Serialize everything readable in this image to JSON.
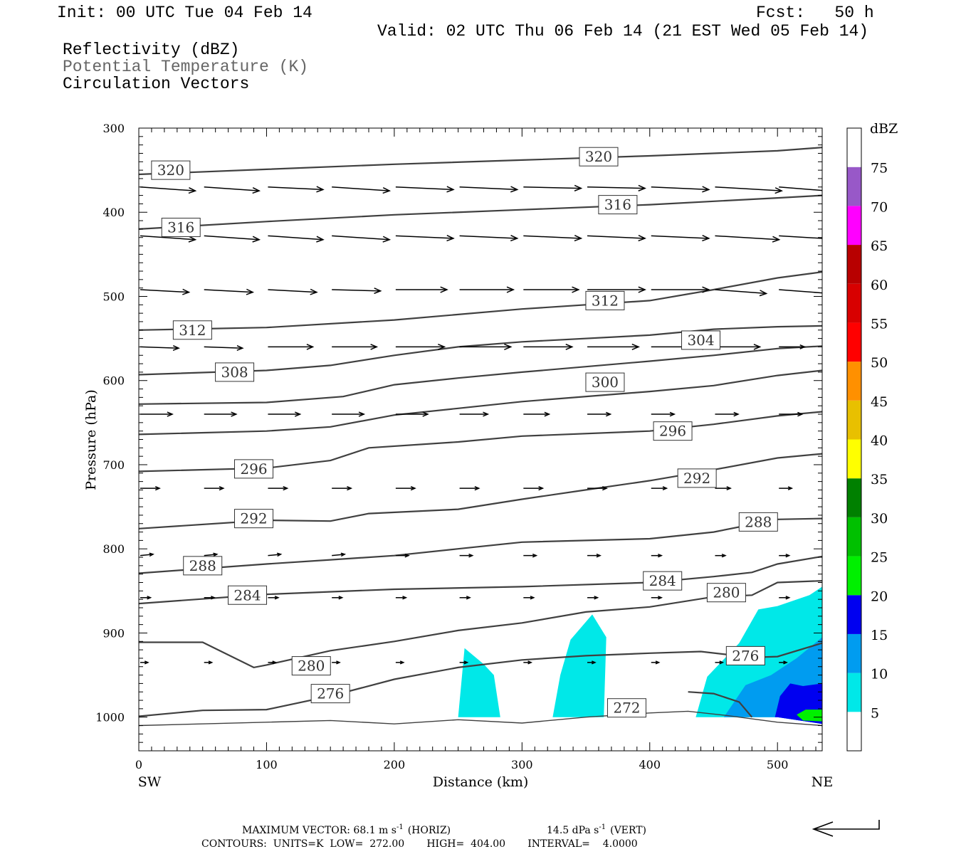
{
  "header": {
    "init": "Init: 00 UTC Tue 04 Feb 14",
    "fcst": "Fcst:   50 h",
    "valid": "Valid: 02 UTC Thu 06 Feb 14 (21 EST Wed 05 Feb 14)",
    "field1": "Reflectivity (dBZ)",
    "field2": "Potential Temperature (K)",
    "field3": "Circulation Vectors"
  },
  "footer": {
    "max_vector": "MAXIMUM VECTOR:  68.1 m s",
    "max_vector_horiz": "(HORIZ)",
    "max_vector_vert_val": "14.5 dPa s",
    "max_vector_vert": "(VERT)",
    "sup": "-1",
    "contours": "CONTOURS:  UNITS=K  LOW=  272.00       HIGH=  404.00       INTERVAL=    4.0000"
  },
  "colors": {
    "contour": "#404040",
    "vector": "#000000",
    "frame": "#000000"
  },
  "chart_data": {
    "type": "cross-section",
    "xlabel": "Distance (km)",
    "ylabel": "Pressure (hPa)",
    "x_left_label": "SW",
    "x_right_label": "NE",
    "xlim": [
      0,
      535
    ],
    "ylim": [
      1040,
      300
    ],
    "xticks": [
      0,
      100,
      200,
      300,
      400,
      500
    ],
    "yticks": [
      300,
      400,
      500,
      600,
      700,
      800,
      900,
      1000
    ],
    "colorbar": {
      "title": "dBZ",
      "levels": [
        5,
        10,
        15,
        20,
        25,
        30,
        35,
        40,
        45,
        50,
        55,
        60,
        65,
        70,
        75
      ],
      "colors": [
        "#ffffff",
        "#00e8e8",
        "#009cf0",
        "#0000f0",
        "#00f000",
        "#00c000",
        "#008000",
        "#ffff00",
        "#e8c000",
        "#ff9000",
        "#ff0000",
        "#d80000",
        "#b80000",
        "#ff00ff",
        "#9858c8",
        "#ffffff"
      ]
    },
    "theta_contours": [
      {
        "value": 320,
        "label": "320",
        "points": [
          [
            0,
            355
          ],
          [
            100,
            349
          ],
          [
            200,
            343
          ],
          [
            300,
            338
          ],
          [
            400,
            333
          ],
          [
            500,
            327
          ],
          [
            535,
            323
          ]
        ]
      },
      {
        "value": 316,
        "label": "316",
        "points": [
          [
            0,
            420
          ],
          [
            100,
            411
          ],
          [
            200,
            403
          ],
          [
            300,
            397
          ],
          [
            400,
            391
          ],
          [
            500,
            383
          ],
          [
            535,
            380
          ]
        ]
      },
      {
        "value": 312,
        "label": "312",
        "points": [
          [
            0,
            540
          ],
          [
            100,
            537
          ],
          [
            200,
            528
          ],
          [
            300,
            515
          ],
          [
            400,
            505
          ],
          [
            450,
            492
          ],
          [
            500,
            478
          ],
          [
            535,
            471
          ]
        ]
      },
      {
        "value": 308,
        "label": "308",
        "points": [
          [
            0,
            593
          ],
          [
            100,
            588
          ],
          [
            150,
            582
          ],
          [
            200,
            570
          ],
          [
            250,
            560
          ],
          [
            300,
            554
          ],
          [
            400,
            546
          ],
          [
            450,
            539
          ],
          [
            500,
            536
          ],
          [
            535,
            535
          ]
        ]
      },
      {
        "value": 304,
        "label": "304",
        "points": [
          [
            0,
            628
          ],
          [
            100,
            626
          ],
          [
            160,
            619
          ],
          [
            200,
            605
          ],
          [
            250,
            597
          ],
          [
            300,
            590
          ],
          [
            400,
            577
          ],
          [
            450,
            570
          ],
          [
            500,
            562
          ],
          [
            535,
            559
          ]
        ]
      },
      {
        "value": 300,
        "label": "300",
        "points": [
          [
            0,
            664
          ],
          [
            100,
            660
          ],
          [
            150,
            655
          ],
          [
            200,
            641
          ],
          [
            250,
            633
          ],
          [
            300,
            625
          ],
          [
            400,
            613
          ],
          [
            450,
            606
          ],
          [
            500,
            594
          ],
          [
            535,
            588
          ]
        ]
      },
      {
        "value": 296,
        "label": "296",
        "points": [
          [
            0,
            708
          ],
          [
            100,
            704
          ],
          [
            150,
            695
          ],
          [
            180,
            680
          ],
          [
            250,
            673
          ],
          [
            300,
            666
          ],
          [
            400,
            660
          ],
          [
            450,
            652
          ],
          [
            500,
            642
          ],
          [
            535,
            637
          ]
        ]
      },
      {
        "value": 292,
        "label": "292",
        "points": [
          [
            0,
            776
          ],
          [
            100,
            766
          ],
          [
            150,
            767
          ],
          [
            180,
            758
          ],
          [
            250,
            753
          ],
          [
            300,
            741
          ],
          [
            350,
            730
          ],
          [
            400,
            719
          ],
          [
            450,
            706
          ],
          [
            500,
            692
          ],
          [
            535,
            687
          ]
        ]
      },
      {
        "value": 288,
        "label": "288",
        "points": [
          [
            0,
            829
          ],
          [
            100,
            818
          ],
          [
            150,
            813
          ],
          [
            200,
            808
          ],
          [
            250,
            800
          ],
          [
            300,
            792
          ],
          [
            400,
            788
          ],
          [
            450,
            780
          ],
          [
            500,
            765
          ],
          [
            535,
            764
          ]
        ]
      },
      {
        "value": 284,
        "label": "284",
        "points": [
          [
            0,
            865
          ],
          [
            100,
            854
          ],
          [
            200,
            848
          ],
          [
            300,
            845
          ],
          [
            400,
            840
          ],
          [
            450,
            833
          ],
          [
            480,
            828
          ],
          [
            500,
            818
          ],
          [
            535,
            809
          ]
        ]
      },
      {
        "value": 280,
        "label": "280",
        "points": [
          [
            0,
            911
          ],
          [
            50,
            911
          ],
          [
            90,
            941
          ],
          [
            100,
            938
          ],
          [
            150,
            921
          ],
          [
            200,
            910
          ],
          [
            250,
            897
          ],
          [
            300,
            888
          ],
          [
            350,
            875
          ],
          [
            400,
            869
          ],
          [
            450,
            857
          ],
          [
            480,
            855
          ],
          [
            500,
            840
          ],
          [
            535,
            838
          ]
        ]
      },
      {
        "value": 276,
        "label": "276",
        "points": [
          [
            0,
            999
          ],
          [
            50,
            992
          ],
          [
            100,
            991
          ],
          [
            150,
            975
          ],
          [
            200,
            955
          ],
          [
            250,
            941
          ],
          [
            300,
            932
          ],
          [
            350,
            927
          ],
          [
            400,
            924
          ],
          [
            440,
            922
          ],
          [
            480,
            929
          ],
          [
            500,
            928
          ],
          [
            535,
            912
          ]
        ]
      },
      {
        "value": 272,
        "label": "272",
        "points": [
          [
            0,
            1010
          ],
          [
            100,
            1006
          ],
          [
            150,
            1004
          ],
          [
            200,
            1008
          ],
          [
            250,
            1003
          ],
          [
            300,
            1007
          ],
          [
            350,
            1000
          ],
          [
            400,
            995
          ],
          [
            430,
            993
          ],
          [
            460,
            998
          ],
          [
            500,
            1006
          ],
          [
            535,
            1010
          ]
        ]
      },
      {
        "value": 274,
        "label": "",
        "points": [
          [
            430,
            970
          ],
          [
            450,
            972
          ],
          [
            470,
            982
          ],
          [
            480,
            1000
          ]
        ]
      }
    ],
    "reflectivity_regions": [
      {
        "level": 5,
        "points": [
          [
            250,
            1000
          ],
          [
            255,
            918
          ],
          [
            270,
            937
          ],
          [
            278,
            950
          ],
          [
            283,
            1000
          ]
        ]
      },
      {
        "level": 5,
        "points": [
          [
            324,
            1000
          ],
          [
            330,
            950
          ],
          [
            338,
            908
          ],
          [
            355,
            878
          ],
          [
            366,
            905
          ],
          [
            364,
            1000
          ]
        ]
      },
      {
        "level": 5,
        "points": [
          [
            436,
            1000
          ],
          [
            445,
            952
          ],
          [
            470,
            912
          ],
          [
            485,
            872
          ],
          [
            500,
            868
          ],
          [
            525,
            855
          ],
          [
            535,
            845
          ],
          [
            535,
            1008
          ],
          [
            500,
            1000
          ]
        ]
      },
      {
        "level": 10,
        "points": [
          [
            458,
            1000
          ],
          [
            475,
            962
          ],
          [
            495,
            950
          ],
          [
            515,
            930
          ],
          [
            535,
            905
          ],
          [
            535,
            1008
          ],
          [
            500,
            1000
          ]
        ]
      },
      {
        "level": 15,
        "points": [
          [
            498,
            1000
          ],
          [
            502,
            975
          ],
          [
            510,
            960
          ],
          [
            520,
            963
          ],
          [
            535,
            960
          ],
          [
            535,
            1008
          ],
          [
            500,
            1000
          ]
        ]
      },
      {
        "level": 20,
        "points": [
          [
            515,
            997
          ],
          [
            522,
            991
          ],
          [
            535,
            991
          ],
          [
            535,
            1005
          ],
          [
            520,
            1004
          ]
        ]
      }
    ],
    "vectors": {
      "x": [
        0,
        50,
        100,
        150,
        200,
        250,
        300,
        350,
        400,
        450,
        500
      ],
      "rows": [
        {
          "p": 370,
          "u": [
            43,
            43,
            43,
            45,
            45,
            45,
            45,
            45,
            45,
            52,
            50
          ],
          "w": [
            -3,
            -3,
            -2,
            -3,
            -2,
            -2,
            -1,
            -1,
            -2,
            -3,
            -4
          ]
        },
        {
          "p": 428,
          "u": [
            43,
            43,
            43,
            45,
            45,
            45,
            45,
            45,
            45,
            50,
            50
          ],
          "w": [
            -3,
            -3,
            -3,
            -3,
            -2,
            -2,
            -2,
            -2,
            -2,
            -3,
            -3
          ]
        },
        {
          "p": 492,
          "u": [
            38,
            38,
            38,
            38,
            40,
            42,
            43,
            45,
            45,
            40,
            40
          ],
          "w": [
            -2,
            -2,
            -2,
            -1,
            0,
            0,
            0,
            0,
            0,
            -3,
            -3
          ]
        },
        {
          "p": 560,
          "u": [
            30,
            30,
            35,
            35,
            38,
            40,
            38,
            40,
            45,
            35,
            20
          ],
          "w": [
            -1,
            -1,
            0,
            0,
            0,
            0,
            0,
            0,
            0,
            0,
            0
          ]
        },
        {
          "p": 640,
          "u": [
            25,
            25,
            25,
            25,
            25,
            22,
            20,
            18,
            18,
            18,
            18
          ],
          "w": [
            0,
            0,
            0,
            0,
            0,
            0,
            0,
            0,
            0,
            0,
            0
          ]
        },
        {
          "p": 728,
          "u": [
            15,
            15,
            15,
            15,
            15,
            15,
            15,
            15,
            12,
            12,
            10
          ],
          "w": [
            0,
            0,
            0,
            0,
            0,
            0,
            0,
            0,
            0,
            0,
            0
          ]
        },
        {
          "p": 808,
          "u": [
            10,
            10,
            10,
            10,
            10,
            10,
            10,
            10,
            8,
            8,
            8
          ],
          "w": [
            1,
            1,
            1,
            1,
            0,
            0,
            0,
            0,
            0,
            0,
            0
          ]
        },
        {
          "p": 858,
          "u": [
            8,
            8,
            8,
            8,
            8,
            8,
            8,
            8,
            8,
            8,
            8
          ],
          "w": [
            0,
            0,
            0,
            0,
            0,
            0,
            0,
            0,
            0,
            0,
            0
          ]
        },
        {
          "p": 935,
          "u": [
            6,
            6,
            6,
            6,
            6,
            6,
            6,
            6,
            6,
            6,
            6
          ],
          "w": [
            0,
            0,
            0,
            0,
            0,
            0,
            0,
            0,
            0,
            0,
            0
          ]
        }
      ]
    }
  }
}
